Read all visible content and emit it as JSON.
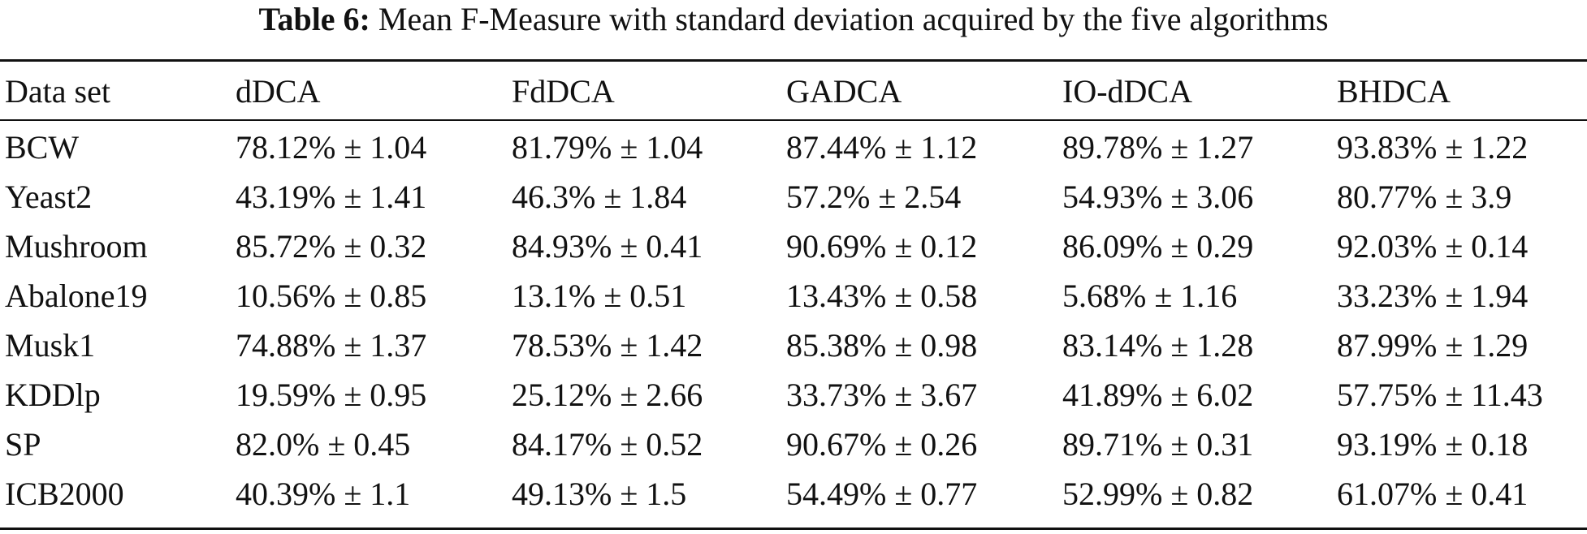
{
  "caption": {
    "label": "Table 6:",
    "text": "Mean F-Measure with standard deviation acquired by the five algorithms"
  },
  "table": {
    "headers": [
      "Data set",
      "dDCA",
      "FdDCA",
      "GADCA",
      "IO-dDCA",
      "BHDCA"
    ],
    "rows": [
      [
        "BCW",
        "78.12% ± 1.04",
        "81.79% ± 1.04",
        "87.44% ± 1.12",
        "89.78% ± 1.27",
        "93.83% ± 1.22"
      ],
      [
        "Yeast2",
        "43.19% ± 1.41",
        "46.3% ± 1.84",
        "57.2% ± 2.54",
        "54.93% ± 3.06",
        "80.77% ± 3.9"
      ],
      [
        "Mushroom",
        "85.72% ± 0.32",
        "84.93% ± 0.41",
        "90.69% ± 0.12",
        "86.09% ± 0.29",
        "92.03% ± 0.14"
      ],
      [
        "Abalone19",
        "10.56% ± 0.85",
        "13.1% ± 0.51",
        "13.43% ± 0.58",
        "5.68% ± 1.16",
        "33.23% ± 1.94"
      ],
      [
        "Musk1",
        "74.88% ± 1.37",
        "78.53% ± 1.42",
        "85.38% ± 0.98",
        "83.14% ± 1.28",
        "87.99% ± 1.29"
      ],
      [
        "KDDlp",
        "19.59% ± 0.95",
        "25.12% ± 2.66",
        "33.73% ± 3.67",
        "41.89% ± 6.02",
        "57.75% ± 11.43"
      ],
      [
        "SP",
        "82.0% ± 0.45",
        "84.17% ± 0.52",
        "90.67% ± 0.26",
        "89.71% ± 0.31",
        "93.19% ± 0.18"
      ],
      [
        "ICB2000",
        "40.39% ± 1.1",
        "49.13% ± 1.5",
        "54.49% ± 0.77",
        "52.99% ± 0.82",
        "61.07% ± 0.41"
      ]
    ]
  }
}
